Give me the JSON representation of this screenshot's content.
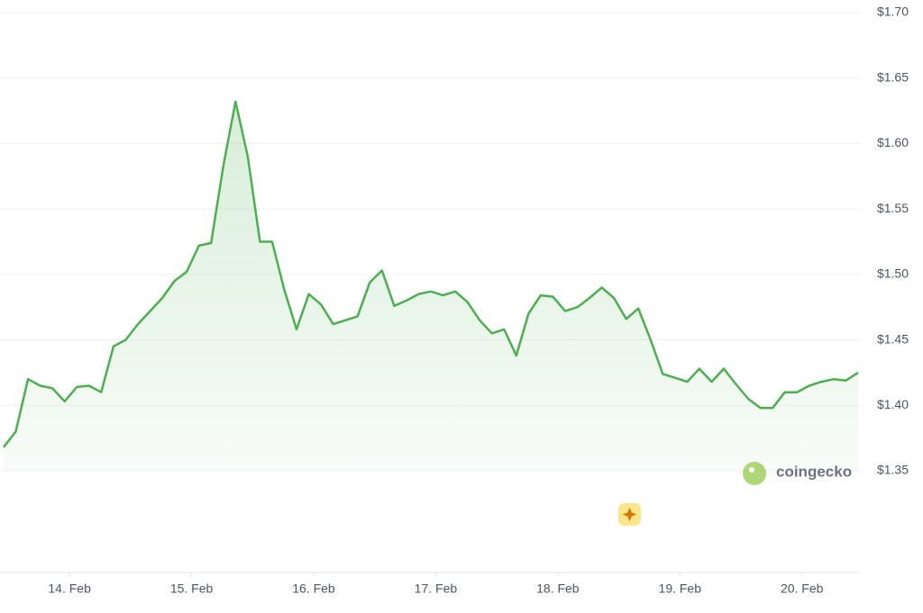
{
  "chart_data": {
    "type": "line",
    "watermark": "coingecko",
    "x": [
      13.46,
      13.56,
      13.66,
      13.76,
      13.86,
      13.96,
      14.06,
      14.16,
      14.26,
      14.36,
      14.46,
      14.56,
      14.66,
      14.76,
      14.86,
      14.96,
      15.06,
      15.16,
      15.26,
      15.36,
      15.46,
      15.56,
      15.66,
      15.76,
      15.86,
      15.96,
      16.06,
      16.16,
      16.26,
      16.36,
      16.46,
      16.56,
      16.66,
      16.76,
      16.86,
      16.96,
      17.06,
      17.16,
      17.26,
      17.36,
      17.46,
      17.56,
      17.66,
      17.76,
      17.86,
      17.96,
      18.06,
      18.16,
      18.26,
      18.36,
      18.46,
      18.56,
      18.66,
      18.76,
      18.86,
      18.96,
      19.06,
      19.16,
      19.26,
      19.36,
      19.46,
      19.56,
      19.66,
      19.76,
      19.86,
      19.96,
      20.06,
      20.16,
      20.26,
      20.36,
      20.46
    ],
    "series": [
      {
        "color": "#4caf50",
        "values": [
          1.368,
          1.38,
          1.42,
          1.415,
          1.413,
          1.403,
          1.414,
          1.415,
          1.41,
          1.445,
          1.45,
          1.462,
          1.472,
          1.482,
          1.495,
          1.502,
          1.522,
          1.524,
          1.583,
          1.632,
          1.59,
          1.525,
          1.525,
          1.488,
          1.458,
          1.485,
          1.477,
          1.462,
          1.465,
          1.468,
          1.494,
          1.503,
          1.476,
          1.48,
          1.485,
          1.487,
          1.484,
          1.487,
          1.479,
          1.465,
          1.455,
          1.458,
          1.438,
          1.47,
          1.484,
          1.483,
          1.472,
          1.475,
          1.482,
          1.49,
          1.482,
          1.466,
          1.474,
          1.45,
          1.424,
          1.421,
          1.418,
          1.428,
          1.418,
          1.428,
          1.416,
          1.405,
          1.398,
          1.398,
          1.41,
          1.41,
          1.415,
          1.418,
          1.42,
          1.419,
          1.425
        ]
      }
    ],
    "xlim": [
      13.46,
      20.46
    ],
    "xticks": [
      {
        "value": 14,
        "label": "14. Feb"
      },
      {
        "value": 15,
        "label": "15. Feb"
      },
      {
        "value": 16,
        "label": "16. Feb"
      },
      {
        "value": 17,
        "label": "17. Feb"
      },
      {
        "value": 18,
        "label": "18. Feb"
      },
      {
        "value": 19,
        "label": "19. Feb"
      },
      {
        "value": 20,
        "label": "20. Feb"
      }
    ],
    "ylim": [
      1.35,
      1.7
    ],
    "yticks": [
      {
        "value": 1.35,
        "label": "$1.35"
      },
      {
        "value": 1.4,
        "label": "$1.40"
      },
      {
        "value": 1.45,
        "label": "$1.45"
      },
      {
        "value": 1.5,
        "label": "$1.50"
      },
      {
        "value": 1.55,
        "label": "$1.55"
      },
      {
        "value": 1.6,
        "label": "$1.60"
      },
      {
        "value": 1.65,
        "label": "$1.65"
      },
      {
        "value": 1.7,
        "label": "$1.70"
      }
    ],
    "grid": true
  }
}
